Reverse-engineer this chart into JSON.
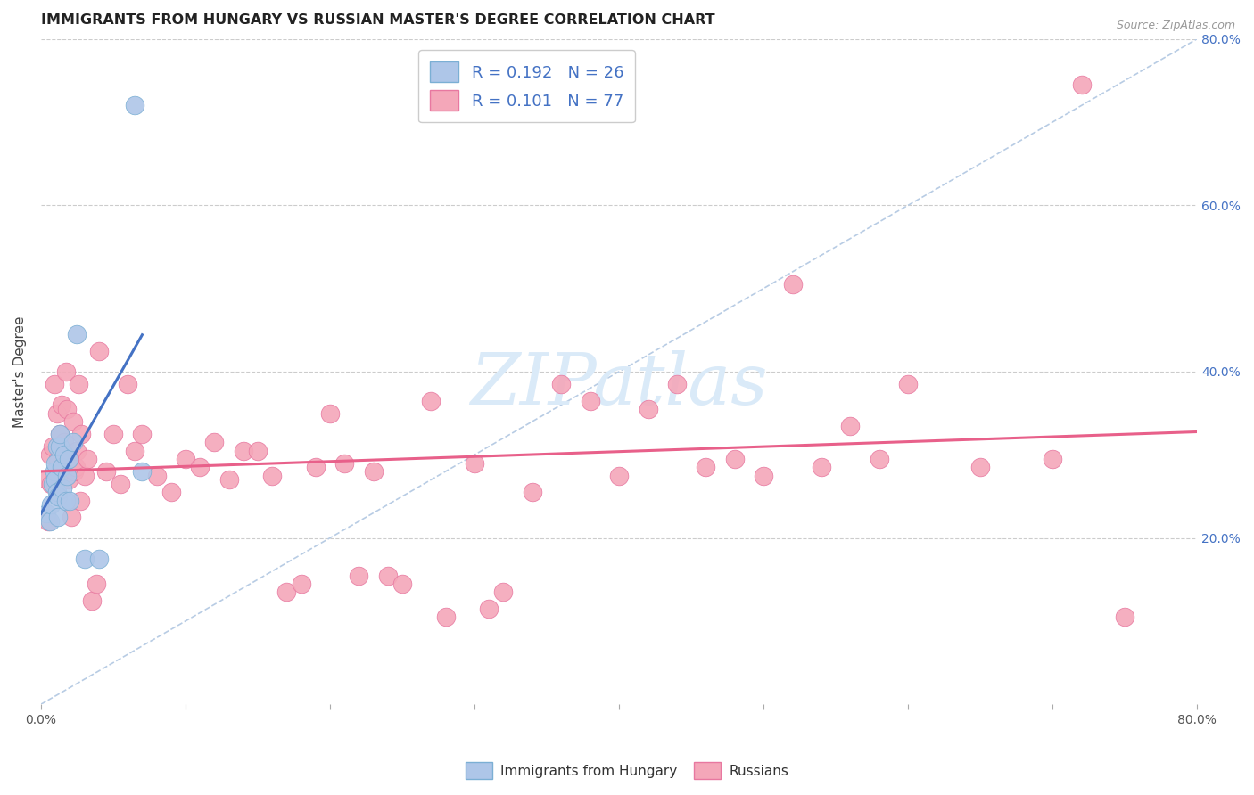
{
  "title": "IMMIGRANTS FROM HUNGARY VS RUSSIAN MASTER'S DEGREE CORRELATION CHART",
  "source": "Source: ZipAtlas.com",
  "ylabel": "Master's Degree",
  "xlim": [
    0.0,
    0.8
  ],
  "ylim": [
    0.0,
    0.8
  ],
  "right_ytick_labels": [
    "20.0%",
    "40.0%",
    "60.0%",
    "80.0%"
  ],
  "right_ytick_positions": [
    0.2,
    0.4,
    0.6,
    0.8
  ],
  "hungary_R": 0.192,
  "hungary_N": 26,
  "russian_R": 0.101,
  "russian_N": 77,
  "hungary_color": "#aec6e8",
  "hungary_edge_color": "#7bafd4",
  "russian_color": "#f4a7b9",
  "russian_edge_color": "#e878a0",
  "hungary_line_color": "#4472c4",
  "russian_line_color": "#e8608a",
  "diagonal_color": "#b8cce4",
  "watermark_text": "ZIPatlas",
  "watermark_color": "#daeaf8",
  "legend_color": "#4472c4",
  "background_color": "#ffffff",
  "grid_color": "#cccccc",
  "hungary_x": [
    0.004,
    0.006,
    0.007,
    0.008,
    0.009,
    0.01,
    0.01,
    0.011,
    0.011,
    0.012,
    0.012,
    0.013,
    0.013,
    0.014,
    0.015,
    0.016,
    0.017,
    0.018,
    0.019,
    0.02,
    0.022,
    0.025,
    0.03,
    0.04,
    0.065,
    0.07
  ],
  "hungary_y": [
    0.23,
    0.22,
    0.24,
    0.265,
    0.28,
    0.27,
    0.29,
    0.255,
    0.31,
    0.25,
    0.225,
    0.31,
    0.325,
    0.285,
    0.26,
    0.3,
    0.245,
    0.275,
    0.295,
    0.245,
    0.315,
    0.445,
    0.175,
    0.175,
    0.72,
    0.28
  ],
  "russian_x": [
    0.004,
    0.005,
    0.006,
    0.007,
    0.008,
    0.009,
    0.01,
    0.011,
    0.012,
    0.013,
    0.014,
    0.015,
    0.016,
    0.017,
    0.018,
    0.019,
    0.02,
    0.021,
    0.022,
    0.023,
    0.024,
    0.025,
    0.026,
    0.027,
    0.028,
    0.03,
    0.032,
    0.035,
    0.038,
    0.04,
    0.045,
    0.05,
    0.055,
    0.06,
    0.065,
    0.07,
    0.08,
    0.09,
    0.1,
    0.11,
    0.12,
    0.13,
    0.14,
    0.15,
    0.16,
    0.17,
    0.18,
    0.19,
    0.2,
    0.21,
    0.22,
    0.23,
    0.24,
    0.25,
    0.27,
    0.28,
    0.3,
    0.31,
    0.32,
    0.34,
    0.36,
    0.38,
    0.4,
    0.42,
    0.44,
    0.46,
    0.48,
    0.5,
    0.52,
    0.54,
    0.56,
    0.58,
    0.6,
    0.65,
    0.7,
    0.72,
    0.75
  ],
  "russian_y": [
    0.27,
    0.22,
    0.3,
    0.265,
    0.31,
    0.385,
    0.265,
    0.35,
    0.295,
    0.325,
    0.36,
    0.28,
    0.315,
    0.4,
    0.355,
    0.27,
    0.295,
    0.225,
    0.34,
    0.28,
    0.285,
    0.305,
    0.385,
    0.245,
    0.325,
    0.275,
    0.295,
    0.125,
    0.145,
    0.425,
    0.28,
    0.325,
    0.265,
    0.385,
    0.305,
    0.325,
    0.275,
    0.255,
    0.295,
    0.285,
    0.315,
    0.27,
    0.305,
    0.305,
    0.275,
    0.135,
    0.145,
    0.285,
    0.35,
    0.29,
    0.155,
    0.28,
    0.155,
    0.145,
    0.365,
    0.105,
    0.29,
    0.115,
    0.135,
    0.255,
    0.385,
    0.365,
    0.275,
    0.355,
    0.385,
    0.285,
    0.295,
    0.275,
    0.505,
    0.285,
    0.335,
    0.295,
    0.385,
    0.285,
    0.295,
    0.745,
    0.105
  ]
}
